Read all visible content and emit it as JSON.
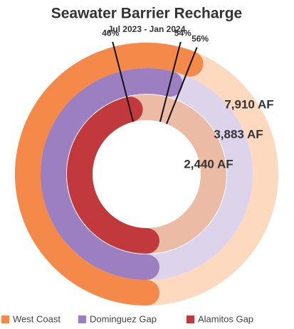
{
  "chart_data": {
    "type": "radial_bar",
    "title": "Seawater Barrier Recharge",
    "subtitle": "Jul 2023 - Jan 2024",
    "ylim": [
      0,
      100
    ],
    "series": [
      {
        "name": "West Coast",
        "color": "#f4894a",
        "track_color": "#fcd9bf",
        "values": [
          56
        ],
        "value_labels": [
          "56%"
        ]
      },
      {
        "name": "Dominguez Gap",
        "color": "#9b7fc0",
        "track_color": "#ddd4ec",
        "values": [
          54
        ],
        "value_labels": [
          "54%"
        ]
      },
      {
        "name": "Alamitos Gap",
        "color": "#c1393d",
        "track_color": "#ecbba6",
        "values": [
          46
        ],
        "value_labels": [
          "46%"
        ]
      }
    ],
    "annotations": [
      "7,910 AF",
      "3,883 AF",
      "2,440 AF"
    ]
  }
}
